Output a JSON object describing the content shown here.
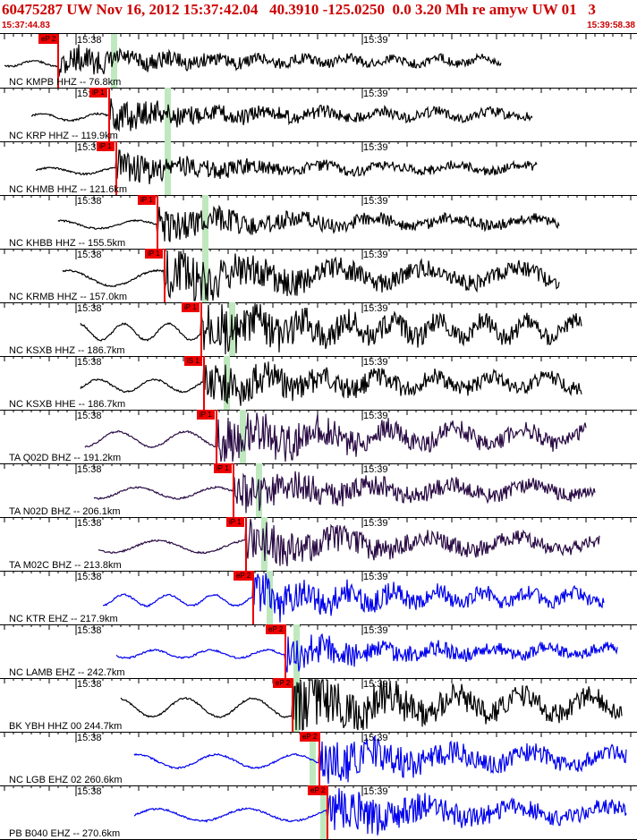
{
  "header": {
    "title": "60475287 UW Nov 16, 2012 15:37:42.04   40.3910 -125.0250  0.0 3.20 Mh re amyw UW 01   3",
    "start_time": "15:37:44.83",
    "end_time": "15:39:58.38"
  },
  "colors": {
    "header_text": "#cc0000",
    "pick": "#ee0000",
    "s_marker": "#bfe8bf"
  },
  "time_marks": [
    "15:38",
    "15:39"
  ],
  "panels": [
    {
      "label": "NC KMPB HHZ -- 76.8km",
      "pick_label": "eP 2",
      "color": "#000000",
      "amp": 0.1,
      "arrival": 0.1,
      "s": 0.14
    },
    {
      "label": "NC KRP HHZ -- 119.9km",
      "pick_label": "iP 1",
      "color": "#000000",
      "amp": 0.15,
      "arrival": 0.14,
      "s": 0.24
    },
    {
      "label": "NC KHMB HHZ -- 121.6km",
      "pick_label": "iP 1",
      "color": "#000000",
      "amp": 0.12,
      "arrival": 0.14,
      "s": 0.24
    },
    {
      "label": "NC KHBB HHZ -- 155.5km",
      "pick_label": "iP 1",
      "color": "#000000",
      "amp": 0.2,
      "arrival": 0.17,
      "s": 0.31
    },
    {
      "label": "NC KRMB HHZ -- 157.0km",
      "pick_label": "iP 1",
      "color": "#000000",
      "amp": 0.55,
      "arrival": 0.17,
      "s": 0.31
    },
    {
      "label": "NC KSXB HHZ -- 186.7km",
      "pick_label": "iP 1",
      "color": "#000000",
      "amp": 0.6,
      "arrival": 0.2,
      "s": 0.36
    },
    {
      "label": "NC KSXB HHE -- 186.7km",
      "pick_label": "iS 1",
      "color": "#000000",
      "amp": 0.4,
      "arrival": 0.2,
      "s": 0.35
    },
    {
      "label": "TA Q02D BHZ -- 191.2km",
      "pick_label": "iP 1",
      "color": "#2a0b44",
      "amp": 0.55,
      "arrival": 0.21,
      "s": 0.38
    },
    {
      "label": "TA N02D BHZ -- 206.1km",
      "pick_label": "iP 1",
      "color": "#2a0b44",
      "amp": 0.35,
      "arrival": 0.22,
      "s": 0.41
    },
    {
      "label": "TA M02C BHZ -- 213.8km",
      "pick_label": "iP 1",
      "color": "#2a0b44",
      "amp": 0.4,
      "arrival": 0.23,
      "s": 0.42
    },
    {
      "label": "NC KTR EHZ -- 217.9km",
      "pick_label": "eP 2",
      "color": "#0000ee",
      "amp": 0.35,
      "arrival": 0.23,
      "s": 0.43
    },
    {
      "label": "NC LAMB EHZ -- 242.7km",
      "pick_label": "eP 2",
      "color": "#0000ee",
      "amp": 0.2,
      "arrival": 0.26,
      "s": 0.48
    },
    {
      "label": "BK YBH HHZ 00 244.7km",
      "pick_label": "eP 2",
      "color": "#000000",
      "amp": 0.7,
      "arrival": 0.26,
      "s": 0.48
    },
    {
      "label": "NC LGB EHZ 02 260.6km",
      "pick_label": "eP 2",
      "color": "#0000ee",
      "amp": 0.45,
      "arrival": 0.28,
      "s": 0.51
    },
    {
      "label": "PB B040 EHZ -- 270.6km",
      "pick_label": "eP 2",
      "color": "#0000ee",
      "amp": 0.4,
      "arrival": 0.29,
      "s": 0.53
    }
  ]
}
